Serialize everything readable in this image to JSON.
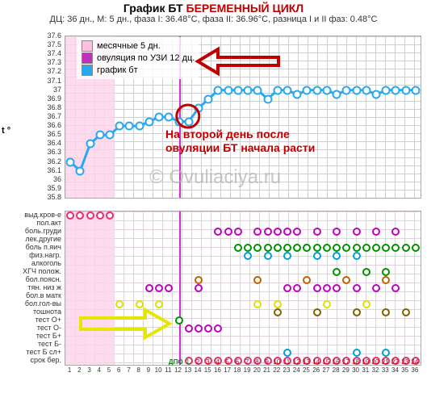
{
  "title_prefix": "График БТ",
  "title_main": "БЕРЕМЕННЫЙ ЦИКЛ",
  "subtitle": "ДЦ: 36 дн., М: 5 дн., фаза I: 36.48°С, фаза II: 36.96°С, разница I и II фаз: 0.48°С",
  "legend": {
    "mens": {
      "label": "месячные 5 дн.",
      "color": "#ffc0e0"
    },
    "ovu": {
      "label": "овуляция по УЗИ 12 дц.",
      "color": "#c030c0"
    },
    "bt": {
      "label": "график бт",
      "color": "#2aa8ee"
    }
  },
  "watermark": "© Ovuliaciya.ru",
  "annotation_text": "На второй день после\nовуляции БТ начала расти",
  "annotation_color": "#c00000",
  "t_label": "t °",
  "dpo_label": "ДПО",
  "bt_chart": {
    "type": "line",
    "ymin": 35.8,
    "ymax": 37.6,
    "ytick_step": 0.1,
    "x_days": [
      1,
      2,
      3,
      4,
      5,
      6,
      7,
      8,
      9,
      10,
      11,
      12,
      13,
      14,
      15,
      16,
      17,
      18,
      19,
      20,
      21,
      22,
      23,
      24,
      25,
      26,
      27,
      28,
      29,
      30,
      31,
      32,
      33,
      34,
      35,
      36
    ],
    "values": [
      36.2,
      36.1,
      36.4,
      36.5,
      36.5,
      36.6,
      36.6,
      36.6,
      36.65,
      36.7,
      36.7,
      36.65,
      36.65,
      36.8,
      36.9,
      37.0,
      37.0,
      37.0,
      37.0,
      37.0,
      36.9,
      37.0,
      37.0,
      36.95,
      37.0,
      37.0,
      37.0,
      36.95,
      37.0,
      37.0,
      37.0,
      36.95,
      37.0,
      37.0,
      37.0,
      37.0
    ],
    "line_color": "#2aa8ee",
    "line_width": 3,
    "marker_border": "#2aa8ee",
    "marker_fill": "#ffffff",
    "grid_color": "#d8c8d8",
    "background_color": "#ffffff",
    "mens_days": 5,
    "mens_color": "#ffd2ea",
    "ovulation_day": 12,
    "ovulation_color": "#d030d0"
  },
  "circle_annotation": {
    "day": 13,
    "temp": 36.7,
    "color": "#c00000"
  },
  "symptom_rows": [
    "выд.кров-е",
    "пол.акт",
    "боль.груди",
    "лек.другие",
    "боль п.яич",
    "физ.нагр.",
    "алкоголь",
    "ХГЧ полож.",
    "бол.поясн.",
    "тян. низ ж",
    "бол.в матк",
    "бол.гол-вы",
    "тошнота",
    "тест О+",
    "тест О-",
    "тест Б+",
    "тест Б-",
    "тест Б сл+",
    "срок бер."
  ],
  "symptom_points": [
    {
      "row": 0,
      "day": 1,
      "c": "#e03070"
    },
    {
      "row": 0,
      "day": 2,
      "c": "#e03070"
    },
    {
      "row": 0,
      "day": 3,
      "c": "#e03070"
    },
    {
      "row": 0,
      "day": 4,
      "c": "#e03070"
    },
    {
      "row": 0,
      "day": 5,
      "c": "#e03070"
    },
    {
      "row": 2,
      "day": 16,
      "c": "#c000c0"
    },
    {
      "row": 2,
      "day": 17,
      "c": "#c000c0"
    },
    {
      "row": 2,
      "day": 18,
      "c": "#c000c0"
    },
    {
      "row": 2,
      "day": 20,
      "c": "#c000c0"
    },
    {
      "row": 2,
      "day": 21,
      "c": "#c000c0"
    },
    {
      "row": 2,
      "day": 22,
      "c": "#c000c0"
    },
    {
      "row": 2,
      "day": 23,
      "c": "#c000c0"
    },
    {
      "row": 2,
      "day": 24,
      "c": "#c000c0"
    },
    {
      "row": 2,
      "day": 26,
      "c": "#c000c0"
    },
    {
      "row": 2,
      "day": 28,
      "c": "#c000c0"
    },
    {
      "row": 2,
      "day": 30,
      "c": "#c000c0"
    },
    {
      "row": 2,
      "day": 32,
      "c": "#c000c0"
    },
    {
      "row": 2,
      "day": 34,
      "c": "#c000c0"
    },
    {
      "row": 4,
      "day": 18,
      "c": "#009000"
    },
    {
      "row": 4,
      "day": 19,
      "c": "#009000"
    },
    {
      "row": 4,
      "day": 20,
      "c": "#009000"
    },
    {
      "row": 4,
      "day": 21,
      "c": "#009000"
    },
    {
      "row": 4,
      "day": 22,
      "c": "#009000"
    },
    {
      "row": 4,
      "day": 23,
      "c": "#009000"
    },
    {
      "row": 4,
      "day": 24,
      "c": "#009000"
    },
    {
      "row": 4,
      "day": 25,
      "c": "#009000"
    },
    {
      "row": 4,
      "day": 26,
      "c": "#009000"
    },
    {
      "row": 4,
      "day": 27,
      "c": "#009000"
    },
    {
      "row": 4,
      "day": 28,
      "c": "#009000"
    },
    {
      "row": 4,
      "day": 29,
      "c": "#009000"
    },
    {
      "row": 4,
      "day": 30,
      "c": "#009000"
    },
    {
      "row": 4,
      "day": 31,
      "c": "#009000"
    },
    {
      "row": 4,
      "day": 32,
      "c": "#009000"
    },
    {
      "row": 4,
      "day": 33,
      "c": "#009000"
    },
    {
      "row": 4,
      "day": 34,
      "c": "#009000"
    },
    {
      "row": 4,
      "day": 35,
      "c": "#009000"
    },
    {
      "row": 4,
      "day": 36,
      "c": "#009000"
    },
    {
      "row": 5,
      "day": 19,
      "c": "#00a0d0"
    },
    {
      "row": 5,
      "day": 21,
      "c": "#00a0d0"
    },
    {
      "row": 5,
      "day": 23,
      "c": "#00a0d0"
    },
    {
      "row": 5,
      "day": 26,
      "c": "#00a0d0"
    },
    {
      "row": 5,
      "day": 28,
      "c": "#00a0d0"
    },
    {
      "row": 5,
      "day": 30,
      "c": "#00a0d0"
    },
    {
      "row": 7,
      "day": 28,
      "c": "#009000"
    },
    {
      "row": 7,
      "day": 31,
      "c": "#009000"
    },
    {
      "row": 7,
      "day": 33,
      "c": "#009000"
    },
    {
      "row": 8,
      "day": 14,
      "c": "#c06000"
    },
    {
      "row": 8,
      "day": 20,
      "c": "#c06000"
    },
    {
      "row": 8,
      "day": 25,
      "c": "#c06000"
    },
    {
      "row": 8,
      "day": 29,
      "c": "#c06000"
    },
    {
      "row": 8,
      "day": 33,
      "c": "#c06000"
    },
    {
      "row": 9,
      "day": 9,
      "c": "#c000c0"
    },
    {
      "row": 9,
      "day": 10,
      "c": "#c000c0"
    },
    {
      "row": 9,
      "day": 11,
      "c": "#c000c0"
    },
    {
      "row": 9,
      "day": 14,
      "c": "#c000c0"
    },
    {
      "row": 9,
      "day": 23,
      "c": "#c000c0"
    },
    {
      "row": 9,
      "day": 24,
      "c": "#c000c0"
    },
    {
      "row": 9,
      "day": 26,
      "c": "#c000c0"
    },
    {
      "row": 9,
      "day": 27,
      "c": "#c000c0"
    },
    {
      "row": 9,
      "day": 28,
      "c": "#c000c0"
    },
    {
      "row": 9,
      "day": 30,
      "c": "#c000c0"
    },
    {
      "row": 9,
      "day": 32,
      "c": "#c000c0"
    },
    {
      "row": 9,
      "day": 34,
      "c": "#c000c0"
    },
    {
      "row": 11,
      "day": 6,
      "c": "#e0e000"
    },
    {
      "row": 11,
      "day": 8,
      "c": "#e0e000"
    },
    {
      "row": 11,
      "day": 10,
      "c": "#e0e000"
    },
    {
      "row": 11,
      "day": 20,
      "c": "#e0e000"
    },
    {
      "row": 11,
      "day": 22,
      "c": "#e0e000"
    },
    {
      "row": 11,
      "day": 27,
      "c": "#e0e000"
    },
    {
      "row": 11,
      "day": 31,
      "c": "#e0e000"
    },
    {
      "row": 12,
      "day": 22,
      "c": "#806000"
    },
    {
      "row": 12,
      "day": 26,
      "c": "#806000"
    },
    {
      "row": 12,
      "day": 30,
      "c": "#806000"
    },
    {
      "row": 12,
      "day": 33,
      "c": "#806000"
    },
    {
      "row": 12,
      "day": 35,
      "c": "#806000"
    },
    {
      "row": 13,
      "day": 12,
      "c": "#009000"
    },
    {
      "row": 14,
      "day": 13,
      "c": "#c000c0"
    },
    {
      "row": 14,
      "day": 14,
      "c": "#c000c0"
    },
    {
      "row": 14,
      "day": 15,
      "c": "#c000c0"
    },
    {
      "row": 14,
      "day": 16,
      "c": "#c000c0"
    },
    {
      "row": 17,
      "day": 23,
      "c": "#00a0d0"
    },
    {
      "row": 17,
      "day": 30,
      "c": "#00a0d0"
    },
    {
      "row": 17,
      "day": 33,
      "c": "#00a0d0"
    },
    {
      "row": 18,
      "day": 13,
      "c": "#e03070"
    },
    {
      "row": 18,
      "day": 14,
      "c": "#e03070"
    },
    {
      "row": 18,
      "day": 15,
      "c": "#e03070"
    },
    {
      "row": 18,
      "day": 16,
      "c": "#e03070"
    },
    {
      "row": 18,
      "day": 17,
      "c": "#e03070"
    },
    {
      "row": 18,
      "day": 18,
      "c": "#e03070"
    },
    {
      "row": 18,
      "day": 19,
      "c": "#e03070"
    },
    {
      "row": 18,
      "day": 20,
      "c": "#e03070"
    },
    {
      "row": 18,
      "day": 21,
      "c": "#e03070"
    },
    {
      "row": 18,
      "day": 22,
      "c": "#e03070"
    },
    {
      "row": 18,
      "day": 23,
      "c": "#e03070"
    },
    {
      "row": 18,
      "day": 24,
      "c": "#e03070"
    },
    {
      "row": 18,
      "day": 25,
      "c": "#e03070"
    },
    {
      "row": 18,
      "day": 26,
      "c": "#e03070"
    },
    {
      "row": 18,
      "day": 27,
      "c": "#e03070"
    },
    {
      "row": 18,
      "day": 28,
      "c": "#e03070"
    },
    {
      "row": 18,
      "day": 29,
      "c": "#e03070"
    },
    {
      "row": 18,
      "day": 30,
      "c": "#e03070"
    },
    {
      "row": 18,
      "day": 31,
      "c": "#e03070"
    },
    {
      "row": 18,
      "day": 32,
      "c": "#e03070"
    },
    {
      "row": 18,
      "day": 33,
      "c": "#e03070"
    },
    {
      "row": 18,
      "day": 34,
      "c": "#e03070"
    },
    {
      "row": 18,
      "day": 35,
      "c": "#e03070"
    },
    {
      "row": 18,
      "day": 36,
      "c": "#e03070"
    }
  ],
  "dpo_start_day": 13,
  "dpo_label_color_pre": "#009000",
  "dpo_label_color_post": "#c00000"
}
